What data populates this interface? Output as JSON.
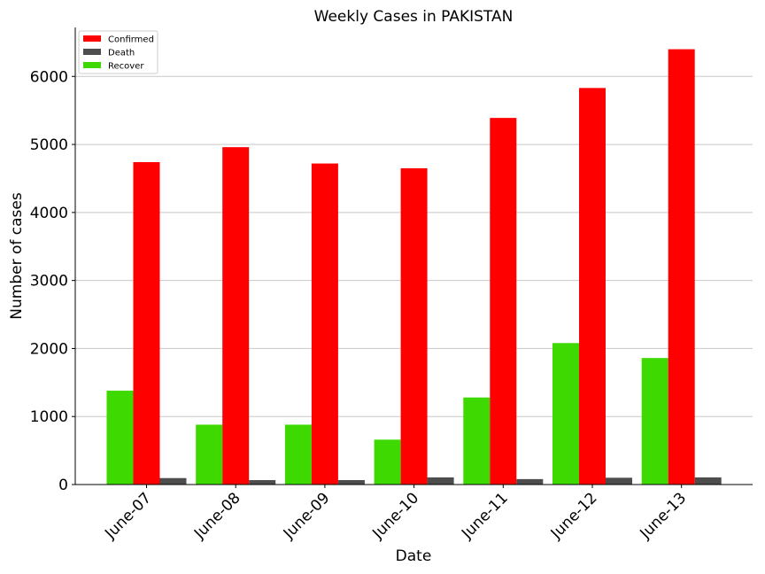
{
  "chart_data": {
    "type": "bar",
    "title": "Weekly Cases in PAKISTAN",
    "xlabel": "Date",
    "ylabel": "Number of cases",
    "categories": [
      "June-07",
      "June-08",
      "June-09",
      "June-10",
      "June-11",
      "June-12",
      "June-13"
    ],
    "series": [
      {
        "name": "Recover",
        "color": "#3dd900",
        "values": [
          1380,
          880,
          880,
          660,
          1280,
          2080,
          1860
        ]
      },
      {
        "name": "Confirmed",
        "color": "#ff0000",
        "values": [
          4740,
          4960,
          4720,
          4650,
          5390,
          5830,
          6400
        ]
      },
      {
        "name": "Death",
        "color": "#4d4d4d",
        "values": [
          95,
          65,
          65,
          105,
          80,
          100,
          105
        ]
      }
    ],
    "legend_order": [
      "Confirmed",
      "Death",
      "Recover"
    ],
    "legend_position": "top-left",
    "ylim": [
      0,
      6720
    ],
    "yticks": [
      0,
      1000,
      2000,
      3000,
      4000,
      5000,
      6000
    ],
    "grid": "y"
  }
}
